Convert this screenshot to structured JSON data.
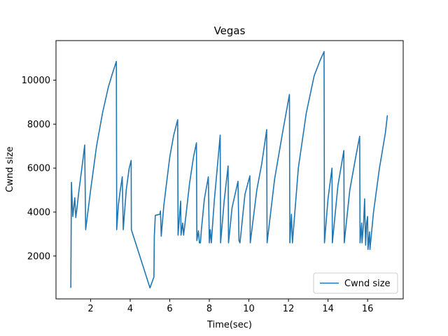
{
  "chart_data": {
    "type": "line",
    "title": "Vegas",
    "xlabel": "Time(sec)",
    "ylabel": "Cwnd size",
    "xlim": [
      0.25,
      17.8
    ],
    "ylim": [
      50,
      11800
    ],
    "xticks": [
      2,
      4,
      6,
      8,
      10,
      12,
      14,
      16
    ],
    "yticks": [
      2000,
      4000,
      6000,
      8000,
      10000
    ],
    "grid": false,
    "legend_position": "lower-right",
    "series": [
      {
        "name": "Cwnd size",
        "color": "#1f77b4",
        "points": [
          [
            1.0,
            550
          ],
          [
            1.03,
            5350
          ],
          [
            1.1,
            3800
          ],
          [
            1.2,
            4650
          ],
          [
            1.25,
            3750
          ],
          [
            1.3,
            4100
          ],
          [
            1.4,
            4900
          ],
          [
            1.5,
            5600
          ],
          [
            1.6,
            6300
          ],
          [
            1.7,
            7050
          ],
          [
            1.75,
            3200
          ],
          [
            2.0,
            5000
          ],
          [
            2.3,
            7000
          ],
          [
            2.6,
            8500
          ],
          [
            2.9,
            9700
          ],
          [
            3.1,
            10300
          ],
          [
            3.3,
            10850
          ],
          [
            3.32,
            3200
          ],
          [
            3.4,
            4300
          ],
          [
            3.5,
            5000
          ],
          [
            3.6,
            5600
          ],
          [
            3.65,
            3200
          ],
          [
            3.8,
            5000
          ],
          [
            3.95,
            6000
          ],
          [
            4.05,
            6350
          ],
          [
            4.06,
            3200
          ],
          [
            5.0,
            550
          ],
          [
            5.2,
            1050
          ],
          [
            5.22,
            2900
          ],
          [
            5.27,
            3850
          ],
          [
            5.5,
            3900
          ],
          [
            5.53,
            4050
          ],
          [
            5.57,
            2900
          ],
          [
            5.7,
            4300
          ],
          [
            6.0,
            6500
          ],
          [
            6.2,
            7500
          ],
          [
            6.4,
            8200
          ],
          [
            6.42,
            2950
          ],
          [
            6.55,
            4500
          ],
          [
            6.57,
            2950
          ],
          [
            6.65,
            3500
          ],
          [
            6.7,
            2950
          ],
          [
            6.8,
            3700
          ],
          [
            7.0,
            5300
          ],
          [
            7.2,
            6500
          ],
          [
            7.35,
            7150
          ],
          [
            7.37,
            2700
          ],
          [
            7.45,
            3150
          ],
          [
            7.5,
            2600
          ],
          [
            7.55,
            2600
          ],
          [
            7.6,
            3200
          ],
          [
            7.75,
            4600
          ],
          [
            7.95,
            5600
          ],
          [
            8.0,
            2600
          ],
          [
            8.05,
            3200
          ],
          [
            8.1,
            2600
          ],
          [
            8.25,
            4500
          ],
          [
            8.45,
            6500
          ],
          [
            8.55,
            7500
          ],
          [
            8.57,
            2600
          ],
          [
            8.75,
            4500
          ],
          [
            8.95,
            6100
          ],
          [
            8.97,
            2600
          ],
          [
            9.15,
            4200
          ],
          [
            9.45,
            5400
          ],
          [
            9.5,
            2700
          ],
          [
            9.55,
            2600
          ],
          [
            9.8,
            4800
          ],
          [
            10.05,
            5650
          ],
          [
            10.07,
            2600
          ],
          [
            10.4,
            5000
          ],
          [
            10.65,
            6200
          ],
          [
            10.9,
            7750
          ],
          [
            10.92,
            2600
          ],
          [
            11.3,
            5500
          ],
          [
            11.7,
            7600
          ],
          [
            12.05,
            9350
          ],
          [
            12.07,
            2600
          ],
          [
            12.15,
            3900
          ],
          [
            12.2,
            2600
          ],
          [
            12.5,
            6000
          ],
          [
            12.9,
            8500
          ],
          [
            13.3,
            10200
          ],
          [
            13.6,
            10900
          ],
          [
            13.8,
            11300
          ],
          [
            13.82,
            2600
          ],
          [
            14.0,
            4600
          ],
          [
            14.2,
            6000
          ],
          [
            14.22,
            2600
          ],
          [
            14.5,
            5200
          ],
          [
            14.8,
            6800
          ],
          [
            14.82,
            2600
          ],
          [
            15.1,
            5000
          ],
          [
            15.4,
            6500
          ],
          [
            15.6,
            7450
          ],
          [
            15.62,
            2600
          ],
          [
            15.7,
            3500
          ],
          [
            15.72,
            2600
          ],
          [
            15.8,
            3500
          ],
          [
            15.85,
            4600
          ],
          [
            15.9,
            2500
          ],
          [
            15.95,
            3500
          ],
          [
            16.0,
            3800
          ],
          [
            16.02,
            2300
          ],
          [
            16.1,
            3100
          ],
          [
            16.12,
            2300
          ],
          [
            16.3,
            4000
          ],
          [
            16.6,
            6000
          ],
          [
            16.9,
            7600
          ],
          [
            17.0,
            8400
          ]
        ]
      }
    ]
  }
}
